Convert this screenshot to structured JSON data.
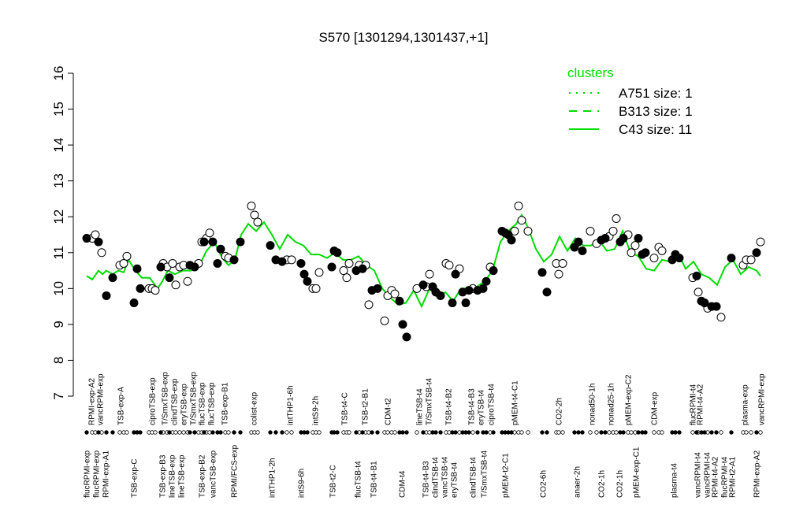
{
  "chart_data": {
    "type": "scatter",
    "title": "S570 [1301294,1301437,+1]",
    "ylim": [
      7,
      16
    ],
    "yticks": [
      7,
      8,
      9,
      10,
      11,
      12,
      13,
      14,
      15,
      16
    ],
    "xlim": [
      0,
      880
    ],
    "series": [
      {
        "marker": "open",
        "color": "#ffffff",
        "x": [
          17,
          21,
          29,
          52,
          57,
          61,
          89,
          93,
          97,
          107,
          112,
          119,
          123,
          128,
          133,
          138,
          152,
          156,
          162,
          166,
          186,
          190,
          219,
          223,
          227,
          264,
          270,
          297,
          301,
          305,
          336,
          340,
          343,
          356,
          364,
          368,
          388,
          392,
          397,
          401,
          429,
          441,
          445,
          466,
          470,
          483,
          500,
          522,
          553,
          558,
          562,
          570,
          606,
          609,
          614,
          649,
          657,
          673,
          678,
          682,
          697,
          701,
          706,
          730,
          736,
          740,
          779,
          786,
          798,
          815,
          843,
          847,
          853,
          865
        ],
        "values": [
          11.4,
          11.5,
          11.0,
          10.65,
          10.7,
          10.9,
          10.0,
          10.0,
          9.95,
          10.7,
          10.6,
          10.7,
          10.1,
          10.6,
          10.65,
          10.2,
          10.7,
          11.3,
          11.4,
          11.55,
          10.9,
          10.85,
          12.3,
          12.05,
          11.85,
          10.8,
          10.8,
          10.0,
          10.0,
          10.45,
          10.5,
          10.3,
          10.7,
          10.65,
          10.65,
          9.55,
          9.1,
          9.8,
          9.95,
          9.85,
          10.0,
          10.05,
          10.4,
          10.7,
          10.65,
          10.55,
          10.0,
          10.6,
          11.6,
          12.3,
          11.9,
          11.6,
          10.7,
          10.4,
          10.7,
          11.6,
          11.25,
          11.45,
          11.6,
          11.95,
          11.5,
          11.0,
          11.2,
          10.85,
          11.15,
          11.05,
          10.3,
          9.9,
          9.45,
          9.2,
          10.65,
          10.8,
          10.8,
          11.3
        ]
      },
      {
        "marker": "filled",
        "color": "#000000",
        "x": [
          10,
          25,
          35,
          43,
          70,
          74,
          78,
          104,
          115,
          141,
          147,
          159,
          170,
          176,
          180,
          197,
          205,
          243,
          250,
          258,
          282,
          286,
          290,
          321,
          324,
          328,
          352,
          360,
          372,
          379,
          407,
          411,
          416,
          437,
          449,
          453,
          459,
          474,
          478,
          487,
          491,
          495,
          506,
          513,
          517,
          526,
          537,
          541,
          545,
          549,
          588,
          594,
          629,
          634,
          639,
          663,
          668,
          687,
          691,
          710,
          715,
          719,
          753,
          757,
          762,
          784,
          790,
          794,
          803,
          809,
          828,
          860
        ],
        "values": [
          11.4,
          11.3,
          9.8,
          10.3,
          9.6,
          10.55,
          10.0,
          10.6,
          10.3,
          10.65,
          10.6,
          11.3,
          11.3,
          10.7,
          11.1,
          10.8,
          11.3,
          11.2,
          10.8,
          10.75,
          10.7,
          10.4,
          10.2,
          10.6,
          11.05,
          11.0,
          10.5,
          10.55,
          9.95,
          10.0,
          9.65,
          9.0,
          8.65,
          10.1,
          10.05,
          9.9,
          9.8,
          9.6,
          10.4,
          9.9,
          9.6,
          9.95,
          9.95,
          10.0,
          10.2,
          10.5,
          11.6,
          11.55,
          11.5,
          11.35,
          10.45,
          9.9,
          11.15,
          11.3,
          11.05,
          11.35,
          11.4,
          11.3,
          11.4,
          11.4,
          10.95,
          11.0,
          10.8,
          10.95,
          10.85,
          10.35,
          9.65,
          9.6,
          9.5,
          9.5,
          10.85,
          11.0
        ]
      }
    ],
    "legend_title": "clusters",
    "legend": "top-right",
    "clusters": [
      {
        "name": "A751 size: 1",
        "style": "dotted",
        "color": "#00dd00"
      },
      {
        "name": "B313 size: 1",
        "style": "dashed",
        "color": "#00dd00"
      },
      {
        "name": "C43 size: 11",
        "style": "solid",
        "color": "#00dd00",
        "x": [
          10,
          17,
          25,
          30,
          35,
          43,
          50,
          57,
          63,
          72,
          80,
          90,
          100,
          106,
          113,
          122,
          132,
          142,
          152,
          162,
          172,
          182,
          190,
          198,
          206,
          215,
          225,
          235,
          245,
          255,
          265,
          275,
          285,
          295,
          305,
          315,
          325,
          335,
          345,
          355,
          365,
          375,
          385,
          395,
          405,
          415,
          425,
          435,
          445,
          455,
          465,
          475,
          485,
          495,
          505,
          515,
          525,
          535,
          545,
          555,
          562,
          570,
          580,
          590,
          600,
          610,
          620,
          630,
          640,
          650,
          660,
          670,
          680,
          690,
          700,
          710,
          720,
          730,
          740,
          750,
          760,
          770,
          780,
          790,
          800,
          810,
          820,
          830,
          840,
          850,
          860,
          865
        ],
        "values": [
          10.35,
          10.25,
          10.5,
          10.4,
          10.5,
          10.4,
          10.5,
          10.45,
          10.8,
          10.5,
          10.3,
          10.3,
          10.0,
          10.2,
          10.5,
          10.4,
          10.5,
          10.5,
          10.6,
          11.05,
          11.3,
          10.85,
          10.65,
          10.8,
          11.5,
          11.8,
          11.6,
          11.85,
          11.5,
          11.1,
          11.5,
          11.3,
          11.2,
          10.95,
          10.95,
          10.85,
          11.0,
          10.8,
          10.8,
          10.9,
          10.65,
          10.5,
          10.0,
          9.75,
          9.55,
          9.6,
          9.95,
          9.5,
          10.0,
          9.75,
          9.9,
          9.65,
          10.0,
          10.0,
          10.05,
          10.2,
          10.5,
          11.3,
          11.6,
          11.8,
          12.05,
          11.7,
          11.1,
          10.75,
          10.95,
          11.45,
          11.05,
          11.4,
          11.2,
          11.2,
          11.35,
          11.05,
          11.1,
          11.6,
          11.0,
          10.9,
          10.55,
          10.5,
          10.8,
          10.75,
          11.0,
          10.55,
          10.75,
          10.4,
          10.3,
          10.1,
          10.6,
          10.8,
          10.4,
          10.6,
          10.5,
          10.35
        ]
      }
    ],
    "labels_top": {
      "text": [
        "RPMI-exp-A2",
        "vancRPMI-exp",
        "TSB-exp-A",
        "ciproTSB-exp",
        "T/SmxTSB-exp",
        "clindTSB-exp",
        "eryTSB-exp",
        "T/SmxTSB-exp",
        "flucTSB-exp",
        "flucTSB-exp",
        "TSB-exp-B1",
        "colist-exp",
        "intTHP1-6h",
        "intS9-2h",
        "TSB-t4-C",
        "TSB-t2-B1",
        "CDM-t2",
        "lineTSB-t4",
        "T/SmxTSB-t4",
        "TSB-t4-B2",
        "TSB-t4-B3",
        "eryTSB-t4",
        "ciproTSB-t4",
        "pMEM-t4-C1",
        "CO2-2h",
        "nonad50-1h",
        "nonad25-1h",
        "pMEM-exp-C2",
        "CDM-exp",
        "flucRPMI-t4",
        "RPMI-t4-A2",
        "plasma-exp",
        "vancRPMI-exp"
      ],
      "x": [
        16,
        27,
        53,
        93,
        109,
        121,
        133,
        145,
        156,
        168,
        185,
        222,
        268,
        300,
        337,
        363,
        392,
        432,
        444,
        469,
        498,
        510,
        523,
        553,
        609,
        651,
        675,
        697,
        730,
        779,
        788,
        845,
        866
      ]
    },
    "labels_bottom": {
      "text": [
        "flucRPMI-exp",
        "flucRPMI-exp",
        "RPMI-exp-A1",
        "TSB-exp-C",
        "TSB-exp-B3",
        "lineTSB-exp",
        "lineTSB-exp",
        "TSB-exp-B2",
        "vancTSB-exp",
        "RPMI/FCS-exp",
        "intTHP1-2h",
        "intS9-6h",
        "TSB-t2-C",
        "flucTSB-t4",
        "TSB-t4-B1",
        "CDM-t4",
        "TSB-t4-B3",
        "clindTSB-t4",
        "vancTSB-t4",
        "eryTSB-t4",
        "clindTSB-t4",
        "T/SmxTSB-t4",
        "pMEM-t2-C1",
        "CO2-6h",
        "anaer-2h",
        "CO2-1h",
        "CO2-1h",
        "pMEM-exp-C1",
        "plasma-t4",
        "vancRPMI-t4",
        "vancRPMI-t4",
        "RPMI-t4-A2",
        "flucRPMI-t4",
        "RPMI-t2-A1",
        "RPMI-exp-A2"
      ],
      "x": [
        10,
        22,
        34,
        70,
        106,
        118,
        130,
        156,
        170,
        197,
        245,
        282,
        322,
        354,
        374,
        410,
        440,
        452,
        464,
        476,
        500,
        514,
        541,
        589,
        632,
        663,
        686,
        707,
        755,
        785,
        797,
        807,
        819,
        829,
        860
      ]
    }
  }
}
